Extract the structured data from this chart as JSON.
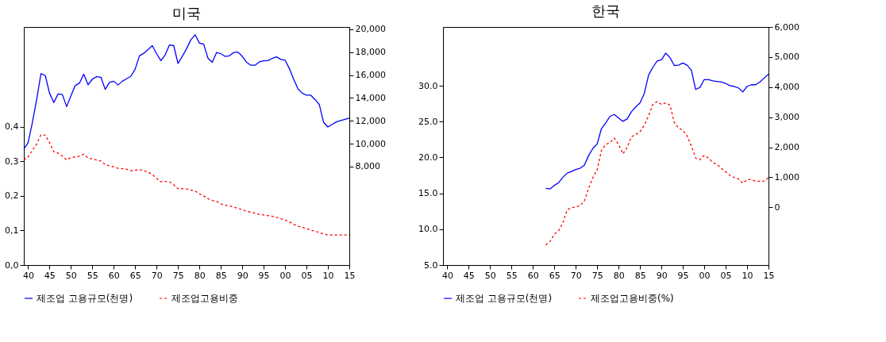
{
  "chart_data": [
    {
      "type": "line",
      "title": "미국",
      "xlim": [
        1939,
        2015
      ],
      "xticks": [
        {
          "value": 1940,
          "label": "40"
        },
        {
          "value": 1945,
          "label": "45"
        },
        {
          "value": 1950,
          "label": "50"
        },
        {
          "value": 1955,
          "label": "55"
        },
        {
          "value": 1960,
          "label": "60"
        },
        {
          "value": 1965,
          "label": "65"
        },
        {
          "value": 1970,
          "label": "70"
        },
        {
          "value": 1975,
          "label": "75"
        },
        {
          "value": 1980,
          "label": "80"
        },
        {
          "value": 1985,
          "label": "85"
        },
        {
          "value": 1990,
          "label": "90"
        },
        {
          "value": 1995,
          "label": "95"
        },
        {
          "value": 2000,
          "label": "00"
        },
        {
          "value": 2005,
          "label": "05"
        },
        {
          "value": 2010,
          "label": "10"
        },
        {
          "value": 2015,
          "label": "15"
        }
      ],
      "ylim": [
        0,
        0.689
      ],
      "yticks": [
        {
          "value": 0,
          "label": "0,0"
        },
        {
          "value": 0.1,
          "label": "0,1"
        },
        {
          "value": 0.2,
          "label": "0,2"
        },
        {
          "value": 0.3,
          "label": "0,3"
        },
        {
          "value": 0.4,
          "label": "0,4"
        }
      ],
      "y2lim": [
        -600,
        20200
      ],
      "y2ticks": [
        {
          "value": 8000,
          "label": "8,000"
        },
        {
          "value": 10000,
          "label": "10,000"
        },
        {
          "value": 12000,
          "label": "12,000"
        },
        {
          "value": 14000,
          "label": "14,000"
        },
        {
          "value": 16000,
          "label": "16,000"
        },
        {
          "value": 18000,
          "label": "18,000"
        },
        {
          "value": 20000,
          "label": "20,000"
        }
      ],
      "legend": "bottom",
      "series": [
        {
          "name": "제조업 고용규모(천명)",
          "color": "#0000ff",
          "axis": "y2",
          "line_style": "solid",
          "x": [
            1939,
            1940,
            1941,
            1942,
            1943,
            1944,
            1945,
            1946,
            1947,
            1948,
            1949,
            1950,
            1951,
            1952,
            1953,
            1954,
            1955,
            1956,
            1957,
            1958,
            1959,
            1960,
            1961,
            1962,
            1963,
            1964,
            1965,
            1966,
            1967,
            1968,
            1969,
            1970,
            1971,
            1972,
            1973,
            1974,
            1975,
            1976,
            1977,
            1978,
            1979,
            1980,
            1981,
            1982,
            1983,
            1984,
            1985,
            1986,
            1987,
            1988,
            1989,
            1990,
            1991,
            1992,
            1993,
            1994,
            1995,
            1996,
            1997,
            1998,
            1999,
            2000,
            2001,
            2002,
            2003,
            2004,
            2005,
            2006,
            2007,
            2008,
            2009,
            2010,
            2011,
            2012,
            2013,
            2014,
            2015
          ],
          "values": [
            9530,
            10090,
            11860,
            13860,
            16120,
            15970,
            14420,
            13590,
            14350,
            14300,
            13240,
            14190,
            15080,
            15300,
            16080,
            15150,
            15640,
            15860,
            15810,
            14750,
            15350,
            15460,
            15130,
            15460,
            15680,
            15900,
            16520,
            17680,
            17900,
            18230,
            18570,
            17860,
            17260,
            17750,
            18630,
            18570,
            17010,
            17630,
            18300,
            19080,
            19520,
            18790,
            18700,
            17460,
            17120,
            17970,
            17860,
            17630,
            17680,
            17970,
            18010,
            17630,
            17120,
            16860,
            16860,
            17150,
            17240,
            17260,
            17460,
            17590,
            17370,
            17300,
            16570,
            15640,
            14790,
            14420,
            14240,
            14240,
            13860,
            13420,
            11860,
            11460,
            11690,
            11910,
            12020,
            12130,
            12240
          ]
        },
        {
          "name": "제조업고용비중",
          "color": "#ff0000",
          "axis": "y",
          "line_style": "dashed",
          "x": [
            1939,
            1940,
            1941,
            1942,
            1943,
            1944,
            1945,
            1946,
            1947,
            1948,
            1949,
            1950,
            1951,
            1952,
            1953,
            1954,
            1955,
            1956,
            1957,
            1958,
            1959,
            1960,
            1961,
            1962,
            1963,
            1964,
            1965,
            1966,
            1967,
            1968,
            1969,
            1970,
            1971,
            1972,
            1973,
            1974,
            1975,
            1976,
            1977,
            1978,
            1979,
            1980,
            1981,
            1982,
            1983,
            1984,
            1985,
            1986,
            1987,
            1988,
            1989,
            1990,
            1991,
            1992,
            1993,
            1994,
            1995,
            1996,
            1997,
            1998,
            1999,
            2000,
            2001,
            2002,
            2003,
            2004,
            2005,
            2006,
            2007,
            2008,
            2009,
            2010,
            2011,
            2012,
            2013,
            2014,
            2015
          ],
          "values": [
            0.304,
            0.313,
            0.332,
            0.35,
            0.377,
            0.376,
            0.354,
            0.328,
            0.324,
            0.315,
            0.304,
            0.311,
            0.313,
            0.315,
            0.321,
            0.31,
            0.307,
            0.304,
            0.301,
            0.291,
            0.287,
            0.284,
            0.28,
            0.279,
            0.277,
            0.273,
            0.274,
            0.276,
            0.273,
            0.269,
            0.262,
            0.251,
            0.241,
            0.242,
            0.241,
            0.232,
            0.221,
            0.221,
            0.22,
            0.217,
            0.214,
            0.206,
            0.2,
            0.192,
            0.187,
            0.184,
            0.177,
            0.173,
            0.171,
            0.168,
            0.164,
            0.16,
            0.156,
            0.153,
            0.15,
            0.146,
            0.145,
            0.143,
            0.141,
            0.138,
            0.134,
            0.13,
            0.125,
            0.118,
            0.112,
            0.109,
            0.106,
            0.101,
            0.098,
            0.094,
            0.09,
            0.087,
            0.087,
            0.087,
            0.087,
            0.087,
            0.087
          ]
        }
      ]
    },
    {
      "type": "line",
      "title": "한국",
      "xlim": [
        1939,
        2015
      ],
      "xticks": [
        {
          "value": 1940,
          "label": "40"
        },
        {
          "value": 1945,
          "label": "45"
        },
        {
          "value": 1950,
          "label": "50"
        },
        {
          "value": 1955,
          "label": "55"
        },
        {
          "value": 1960,
          "label": "60"
        },
        {
          "value": 1965,
          "label": "65"
        },
        {
          "value": 1970,
          "label": "70"
        },
        {
          "value": 1975,
          "label": "75"
        },
        {
          "value": 1980,
          "label": "80"
        },
        {
          "value": 1985,
          "label": "85"
        },
        {
          "value": 1990,
          "label": "90"
        },
        {
          "value": 1995,
          "label": "95"
        },
        {
          "value": 2000,
          "label": "00"
        },
        {
          "value": 2005,
          "label": "05"
        },
        {
          "value": 2010,
          "label": "10"
        },
        {
          "value": 2015,
          "label": "15"
        }
      ],
      "ylim": [
        5,
        38.2
      ],
      "yticks": [
        {
          "value": 5,
          "label": "5.0"
        },
        {
          "value": 10,
          "label": "10.0"
        },
        {
          "value": 15,
          "label": "15.0"
        },
        {
          "value": 20,
          "label": "20.0"
        },
        {
          "value": 25,
          "label": "25.0"
        },
        {
          "value": 30,
          "label": "30.0"
        }
      ],
      "y2lim": [
        -1920,
        6000
      ],
      "y2ticks": [
        0,
        {
          "value": 1000,
          "label": "1,000"
        },
        {
          "value": 2000,
          "label": "2,000"
        },
        {
          "value": 3000,
          "label": "3,000"
        },
        {
          "value": 4000,
          "label": "4,000"
        },
        {
          "value": 5000,
          "label": "5,000"
        },
        {
          "value": 6000,
          "label": "6,000"
        }
      ],
      "legend": "bottom",
      "series": [
        {
          "name": "제조업 고용규모(천명)",
          "color": "#0000ff",
          "axis": "y2",
          "line_style": "solid",
          "x": [
            1963,
            1964,
            1965,
            1966,
            1967,
            1968,
            1969,
            1970,
            1971,
            1972,
            1973,
            1974,
            1975,
            1976,
            1977,
            1978,
            1979,
            1980,
            1981,
            1982,
            1983,
            1984,
            1985,
            1986,
            1987,
            1988,
            1989,
            1990,
            1991,
            1992,
            1993,
            1994,
            1995,
            1996,
            1997,
            1998,
            1999,
            2000,
            2001,
            2002,
            2003,
            2004,
            2005,
            2006,
            2007,
            2008,
            2009,
            2010,
            2011,
            2012,
            2013,
            2014,
            2015
          ],
          "values": [
            630,
            610,
            730,
            820,
            1000,
            1140,
            1190,
            1260,
            1300,
            1400,
            1720,
            1960,
            2110,
            2620,
            2810,
            3030,
            3090,
            2970,
            2860,
            2940,
            3180,
            3340,
            3470,
            3790,
            4400,
            4660,
            4870,
            4910,
            5130,
            4980,
            4720,
            4730,
            4800,
            4730,
            4560,
            3920,
            3990,
            4250,
            4250,
            4210,
            4190,
            4170,
            4120,
            4050,
            4020,
            3970,
            3840,
            4020,
            4080,
            4080,
            4170,
            4300,
            4430
          ]
        },
        {
          "name": "제조업고용비중(%)",
          "color": "#ff0000",
          "axis": "y",
          "line_style": "dashed",
          "x": [
            1963,
            1964,
            1965,
            1966,
            1967,
            1968,
            1969,
            1970,
            1971,
            1972,
            1973,
            1974,
            1975,
            1976,
            1977,
            1978,
            1979,
            1980,
            1981,
            1982,
            1983,
            1984,
            1985,
            1986,
            1987,
            1988,
            1989,
            1990,
            1991,
            1992,
            1993,
            1994,
            1995,
            1996,
            1997,
            1998,
            1999,
            2000,
            2001,
            2002,
            2003,
            2004,
            2005,
            2006,
            2007,
            2008,
            2009,
            2010,
            2011,
            2012,
            2013,
            2014,
            2015
          ],
          "values": [
            7.8,
            8.3,
            9.3,
            9.8,
            10.9,
            12.7,
            13.0,
            13.1,
            13.3,
            13.9,
            15.7,
            17.2,
            18.3,
            21.0,
            21.8,
            22.1,
            22.7,
            21.8,
            20.5,
            21.4,
            22.9,
            23.2,
            23.6,
            24.5,
            25.8,
            27.4,
            27.8,
            27.4,
            27.6,
            27.3,
            24.9,
            24.1,
            23.8,
            23.0,
            21.6,
            19.9,
            19.7,
            20.3,
            19.9,
            19.3,
            19.0,
            18.5,
            18.0,
            17.5,
            17.2,
            17.0,
            16.4,
            16.9,
            16.9,
            16.7,
            16.7,
            16.7,
            17.2
          ]
        }
      ]
    }
  ]
}
